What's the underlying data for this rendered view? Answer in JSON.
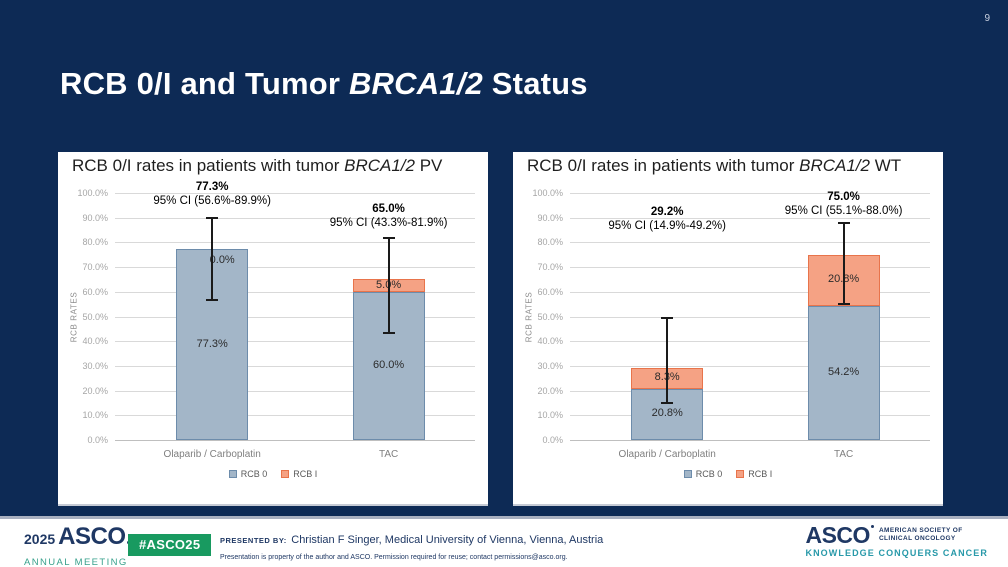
{
  "page_number": "9",
  "slide_title": {
    "prefix": "RCB 0/I and Tumor ",
    "italic": "BRCA1/2",
    "suffix": " Status"
  },
  "colors": {
    "background": "#0d2a55",
    "rcb0_fill": "#a3b6c8",
    "rcb0_border": "#6d8cab",
    "rcb1_fill": "#f5a284",
    "rcb1_border": "#e8744b",
    "gridline": "#d9d9d9",
    "axis_line": "#bfbfbf",
    "error_bar": "#1a1a1a",
    "badge_green": "#189a60",
    "navy_text": "#1f3864",
    "annual_meeting_teal": "#38a18c",
    "tagline_teal": "#2899a9"
  },
  "chart_data": [
    {
      "type": "bar",
      "stacked": true,
      "title_prefix": "RCB 0/I rates in patients with tumor ",
      "title_italic": "BRCA1/2",
      "title_suffix": " PV",
      "ylabel": "RCB RATES",
      "ylim": [
        0,
        100
      ],
      "grid": true,
      "legend_position": "bottom",
      "y_ticks": [
        "0.0%",
        "10.0%",
        "20.0%",
        "30.0%",
        "40.0%",
        "50.0%",
        "60.0%",
        "70.0%",
        "80.0%",
        "90.0%",
        "100.0%"
      ],
      "categories": [
        "Olaparib / Carboplatin",
        "TAC"
      ],
      "series": [
        {
          "name": "RCB 0",
          "values": [
            77.3,
            60.0
          ],
          "labels": [
            "77.3%",
            "60.0%"
          ]
        },
        {
          "name": "RCB I",
          "values": [
            0.0,
            5.0
          ],
          "labels": [
            "0.0%",
            "5.0%"
          ]
        }
      ],
      "annotations": [
        {
          "total": "77.3%",
          "ci": "95% CI (56.6%-89.9%)",
          "ci_low": 56.6,
          "ci_high": 89.9,
          "label_bottom": 94
        },
        {
          "total": "65.0%",
          "ci": "95% CI (43.3%-81.9%)",
          "ci_low": 43.3,
          "ci_high": 81.9,
          "label_bottom": 85
        }
      ]
    },
    {
      "type": "bar",
      "stacked": true,
      "title_prefix": "RCB 0/I rates in patients with tumor ",
      "title_italic": "BRCA1/2",
      "title_suffix": " WT",
      "ylabel": "RCB RATES",
      "ylim": [
        0,
        100
      ],
      "grid": true,
      "legend_position": "bottom",
      "y_ticks": [
        "0.0%",
        "10.0%",
        "20.0%",
        "30.0%",
        "40.0%",
        "50.0%",
        "60.0%",
        "70.0%",
        "80.0%",
        "90.0%",
        "100.0%"
      ],
      "categories": [
        "Olaparib / Carboplatin",
        "TAC"
      ],
      "series": [
        {
          "name": "RCB 0",
          "values": [
            20.8,
            54.2
          ],
          "labels": [
            "20.8%",
            "54.2%"
          ]
        },
        {
          "name": "RCB I",
          "values": [
            8.3,
            20.8
          ],
          "labels": [
            "8.3%",
            "20.8%"
          ]
        }
      ],
      "annotations": [
        {
          "total": "29.2%",
          "ci": "95% CI (14.9%-49.2%)",
          "ci_low": 14.9,
          "ci_high": 49.2,
          "label_bottom": 84
        },
        {
          "total": "75.0%",
          "ci": "95% CI (55.1%-88.0%)",
          "ci_low": 55.1,
          "ci_high": 88.0,
          "label_bottom": 90
        }
      ]
    }
  ],
  "footer": {
    "meeting_year": "2025",
    "meeting_name": "ASCO",
    "meeting_sub": "ANNUAL MEETING",
    "hashtag": "#ASCO25",
    "presented_by_label": "PRESENTED BY:",
    "presenter": "Christian F Singer, Medical University of Vienna, Vienna, Austria",
    "disclaimer": "Presentation is property of the author and ASCO. Permission required for reuse; contact permissions@asco.org.",
    "asco_logo": "ASCO",
    "asco_society_line1": "AMERICAN SOCIETY OF",
    "asco_society_line2": "CLINICAL ONCOLOGY",
    "asco_tagline": "KNOWLEDGE CONQUERS CANCER"
  }
}
